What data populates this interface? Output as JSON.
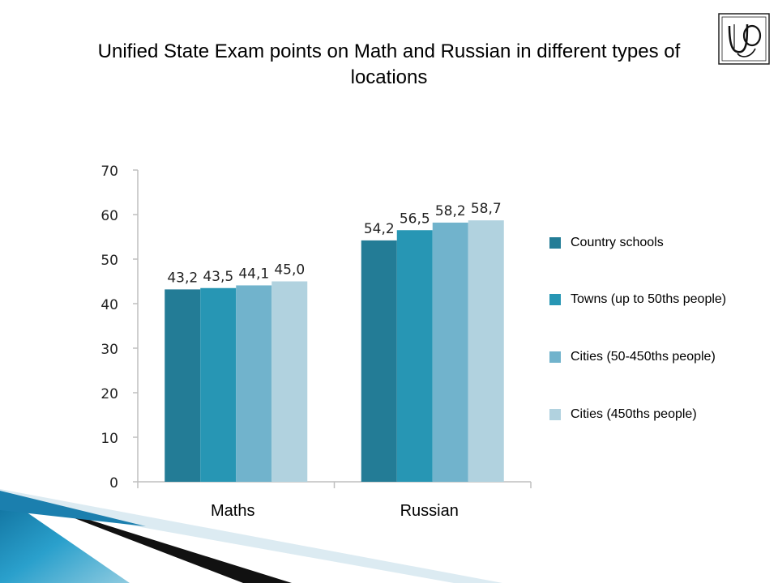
{
  "slide": {
    "title": "Unified State Exam points on Math and Russian in different types of locations"
  },
  "logo": {
    "icon": "ucho-monogram-logo",
    "letters": "UČ"
  },
  "colors": {
    "series": [
      "#237c96",
      "#2796b4",
      "#71b3cc",
      "#b1d2df"
    ],
    "axis": "#bfbfbf",
    "deco_dark": "#0b0b0b",
    "deco_blue": "#1a86b5",
    "deco_light": "#cfe4ee"
  },
  "chart_data": {
    "type": "bar",
    "categories": [
      "Maths",
      "Russian"
    ],
    "series": [
      {
        "name": "Country schools",
        "values": [
          43.2,
          54.2
        ],
        "labels": [
          "43,2",
          "54,2"
        ]
      },
      {
        "name": "Towns (up to 50ths people)",
        "values": [
          43.5,
          56.5
        ],
        "labels": [
          "43,5",
          "56,5"
        ]
      },
      {
        "name": "Cities (50-450ths people)",
        "values": [
          44.1,
          58.2
        ],
        "labels": [
          "44,1",
          "58,2"
        ]
      },
      {
        "name": "Cities (450ths people)",
        "values": [
          45.0,
          58.7
        ],
        "labels": [
          "45,0",
          "58,7"
        ]
      }
    ],
    "yticks": [
      "0",
      "10",
      "20",
      "30",
      "40",
      "50",
      "60",
      "70"
    ],
    "ylim": [
      0,
      70
    ],
    "grid": false,
    "legend": "right"
  }
}
